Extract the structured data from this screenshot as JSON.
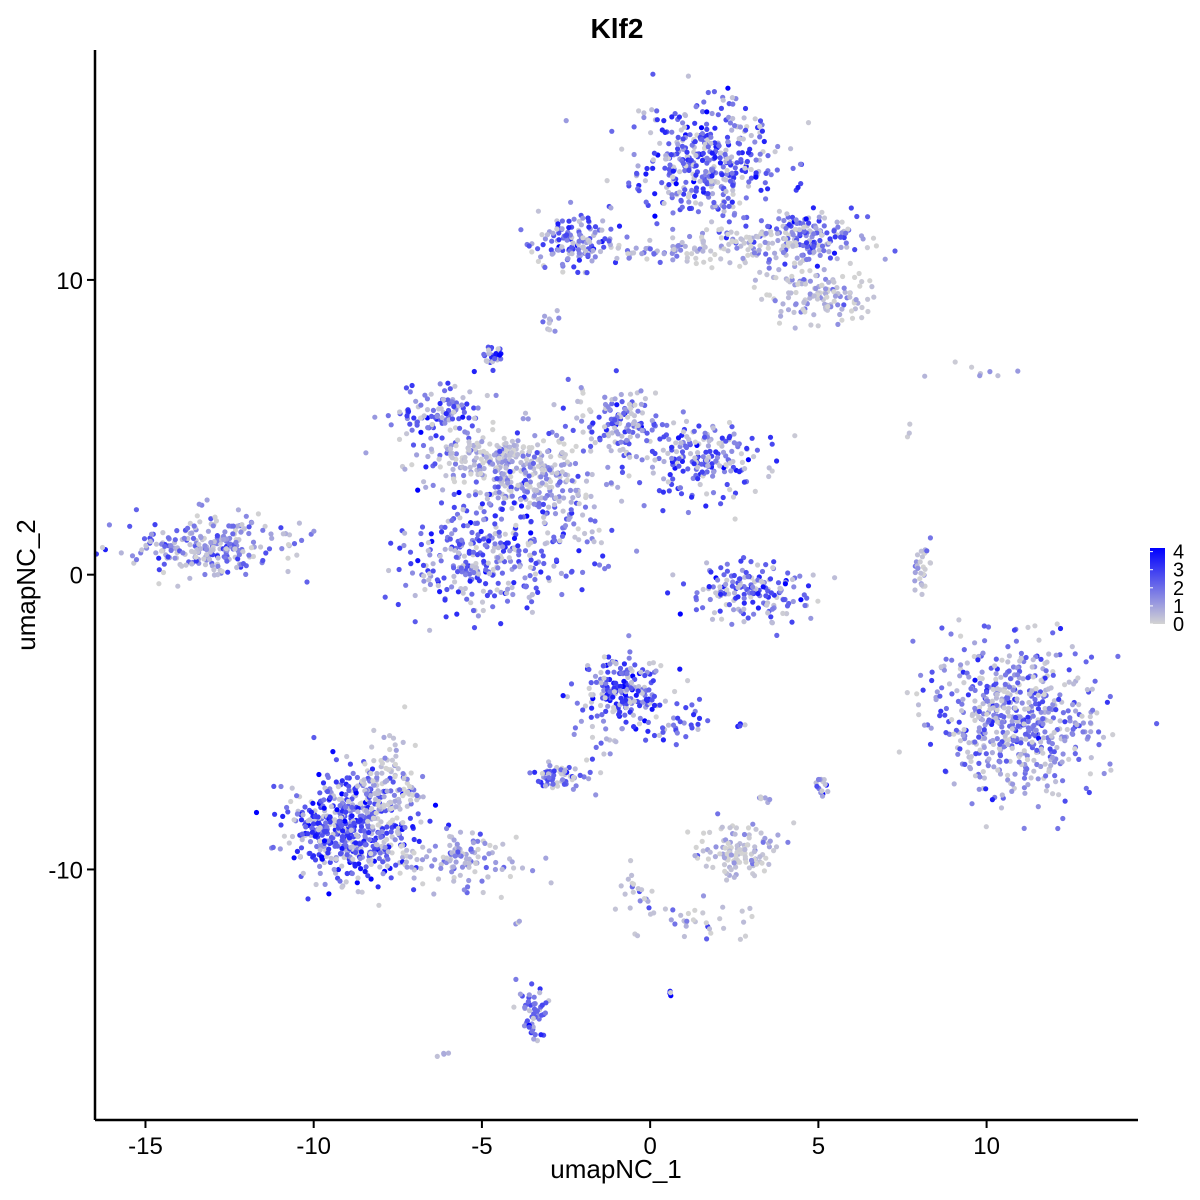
{
  "chart_data": {
    "type": "scatter",
    "title": "Klf2",
    "xlabel": "umapNC_1",
    "ylabel": "umapNC_2",
    "xlim": [
      -16.5,
      14.5
    ],
    "ylim": [
      -18.5,
      17.8
    ],
    "x_ticks": [
      -15,
      -10,
      -5,
      0,
      5,
      10
    ],
    "x_tick_labels": [
      "-15",
      "-10",
      "-5",
      "0",
      "5",
      "10"
    ],
    "y_ticks": [
      -10,
      0,
      10
    ],
    "y_tick_labels": [
      "-10",
      "0",
      "10"
    ],
    "color_scale": {
      "low_color": "#d3d3d3",
      "high_color": "#0000ff",
      "min": 0,
      "max": 4.2,
      "legend_ticks": [
        0,
        1,
        2,
        3,
        4
      ],
      "legend_tick_labels": [
        "0",
        "1",
        "2",
        "3",
        "4"
      ],
      "legend_position": "right"
    },
    "clusters": [
      {
        "cx": 1.7,
        "cy": 14.0,
        "sx": 1.0,
        "sy": 1.0,
        "n": 420,
        "expr": 2.4
      },
      {
        "cx": 4.8,
        "cy": 11.5,
        "sx": 0.8,
        "sy": 0.5,
        "n": 170,
        "expr": 2.0
      },
      {
        "cx": 5.0,
        "cy": 9.5,
        "sx": 0.8,
        "sy": 0.5,
        "n": 130,
        "expr": 0.6
      },
      {
        "cx": -2.3,
        "cy": 11.3,
        "sx": 0.6,
        "sy": 0.5,
        "n": 130,
        "expr": 2.0
      },
      {
        "cx": 0.0,
        "cy": 11.0,
        "sx": 1.6,
        "sy": 0.25,
        "n": 70,
        "expr": 1.0
      },
      {
        "cx": 2.8,
        "cy": 11.0,
        "sx": 0.9,
        "sy": 0.4,
        "n": 70,
        "expr": 0.4
      },
      {
        "cx": -3.0,
        "cy": 8.6,
        "sx": 0.12,
        "sy": 0.2,
        "n": 10,
        "expr": 1.0
      },
      {
        "cx": -4.7,
        "cy": 7.4,
        "sx": 0.2,
        "sy": 0.2,
        "n": 30,
        "expr": 2.8
      },
      {
        "cx": -6.3,
        "cy": 5.5,
        "sx": 0.6,
        "sy": 0.5,
        "n": 110,
        "expr": 2.0
      },
      {
        "cx": -4.6,
        "cy": 3.9,
        "sx": 1.2,
        "sy": 0.5,
        "n": 240,
        "expr": 0.7
      },
      {
        "cx": -3.3,
        "cy": 3.0,
        "sx": 1.0,
        "sy": 0.7,
        "n": 160,
        "expr": 1.6
      },
      {
        "cx": -1.0,
        "cy": 5.2,
        "sx": 0.7,
        "sy": 0.6,
        "n": 130,
        "expr": 2.0
      },
      {
        "cx": 1.5,
        "cy": 4.0,
        "sx": 1.0,
        "sy": 0.6,
        "n": 200,
        "expr": 2.3
      },
      {
        "cx": -5.0,
        "cy": 0.6,
        "sx": 1.1,
        "sy": 0.9,
        "n": 320,
        "expr": 2.2
      },
      {
        "cx": -2.3,
        "cy": 1.2,
        "sx": 0.7,
        "sy": 0.7,
        "n": 40,
        "expr": 1.8
      },
      {
        "cx": -13.0,
        "cy": 1.0,
        "sx": 1.2,
        "sy": 0.5,
        "n": 260,
        "expr": 1.8
      },
      {
        "cx": 2.9,
        "cy": -0.6,
        "sx": 1.0,
        "sy": 0.5,
        "n": 170,
        "expr": 2.4
      },
      {
        "cx": 8.1,
        "cy": 0.3,
        "sx": 0.15,
        "sy": 0.5,
        "n": 30,
        "expr": 0.6
      },
      {
        "cx": 10.9,
        "cy": -4.8,
        "sx": 1.2,
        "sy": 1.3,
        "n": 600,
        "expr": 1.8
      },
      {
        "cx": -0.8,
        "cy": -3.9,
        "sx": 0.6,
        "sy": 0.6,
        "n": 200,
        "expr": 2.7
      },
      {
        "cx": 0.7,
        "cy": -5.2,
        "sx": 0.5,
        "sy": 0.25,
        "n": 30,
        "expr": 2.4
      },
      {
        "cx": -1.5,
        "cy": -5.5,
        "sx": 0.3,
        "sy": 0.6,
        "n": 20,
        "expr": 2.0
      },
      {
        "cx": -2.7,
        "cy": -6.9,
        "sx": 0.4,
        "sy": 0.2,
        "n": 60,
        "expr": 2.0
      },
      {
        "cx": -8.9,
        "cy": -8.6,
        "sx": 0.9,
        "sy": 0.9,
        "n": 560,
        "expr": 2.6
      },
      {
        "cx": -7.7,
        "cy": -7.3,
        "sx": 0.5,
        "sy": 1.0,
        "n": 120,
        "expr": 0.5
      },
      {
        "cx": -5.5,
        "cy": -9.6,
        "sx": 1.0,
        "sy": 0.5,
        "n": 120,
        "expr": 1.0
      },
      {
        "cx": 2.6,
        "cy": -9.4,
        "sx": 0.6,
        "sy": 0.4,
        "n": 120,
        "expr": 0.4
      },
      {
        "cx": 1.5,
        "cy": -11.8,
        "sx": 0.9,
        "sy": 0.4,
        "n": 30,
        "expr": 0.6
      },
      {
        "cx": -0.4,
        "cy": -11.0,
        "sx": 0.3,
        "sy": 0.6,
        "n": 25,
        "expr": 0.8
      },
      {
        "cx": -3.5,
        "cy": -14.9,
        "sx": 0.2,
        "sy": 0.5,
        "n": 50,
        "expr": 2.2
      },
      {
        "cx": 0.6,
        "cy": -14.2,
        "sx": 0.04,
        "sy": 0.04,
        "n": 5,
        "expr": 4.2
      },
      {
        "cx": 5.1,
        "cy": -7.2,
        "sx": 0.1,
        "sy": 0.2,
        "n": 15,
        "expr": 1.8
      },
      {
        "cx": 3.4,
        "cy": -7.6,
        "sx": 0.1,
        "sy": 0.1,
        "n": 6,
        "expr": 0.8
      },
      {
        "cx": 2.8,
        "cy": -5.1,
        "sx": 0.1,
        "sy": 0.05,
        "n": 4,
        "expr": 2.4
      },
      {
        "cx": -6.2,
        "cy": -16.2,
        "sx": 0.1,
        "sy": 0.05,
        "n": 4,
        "expr": 0.6
      },
      {
        "cx": -3.9,
        "cy": -11.8,
        "sx": 0.05,
        "sy": 0.05,
        "n": 3,
        "expr": 1.2
      },
      {
        "cx": 9.5,
        "cy": 6.8,
        "sx": 1.0,
        "sy": 0.15,
        "n": 8,
        "expr": 0.3
      },
      {
        "cx": 7.7,
        "cy": 4.8,
        "sx": 0.05,
        "sy": 0.1,
        "n": 3,
        "expr": 0.5
      }
    ]
  }
}
